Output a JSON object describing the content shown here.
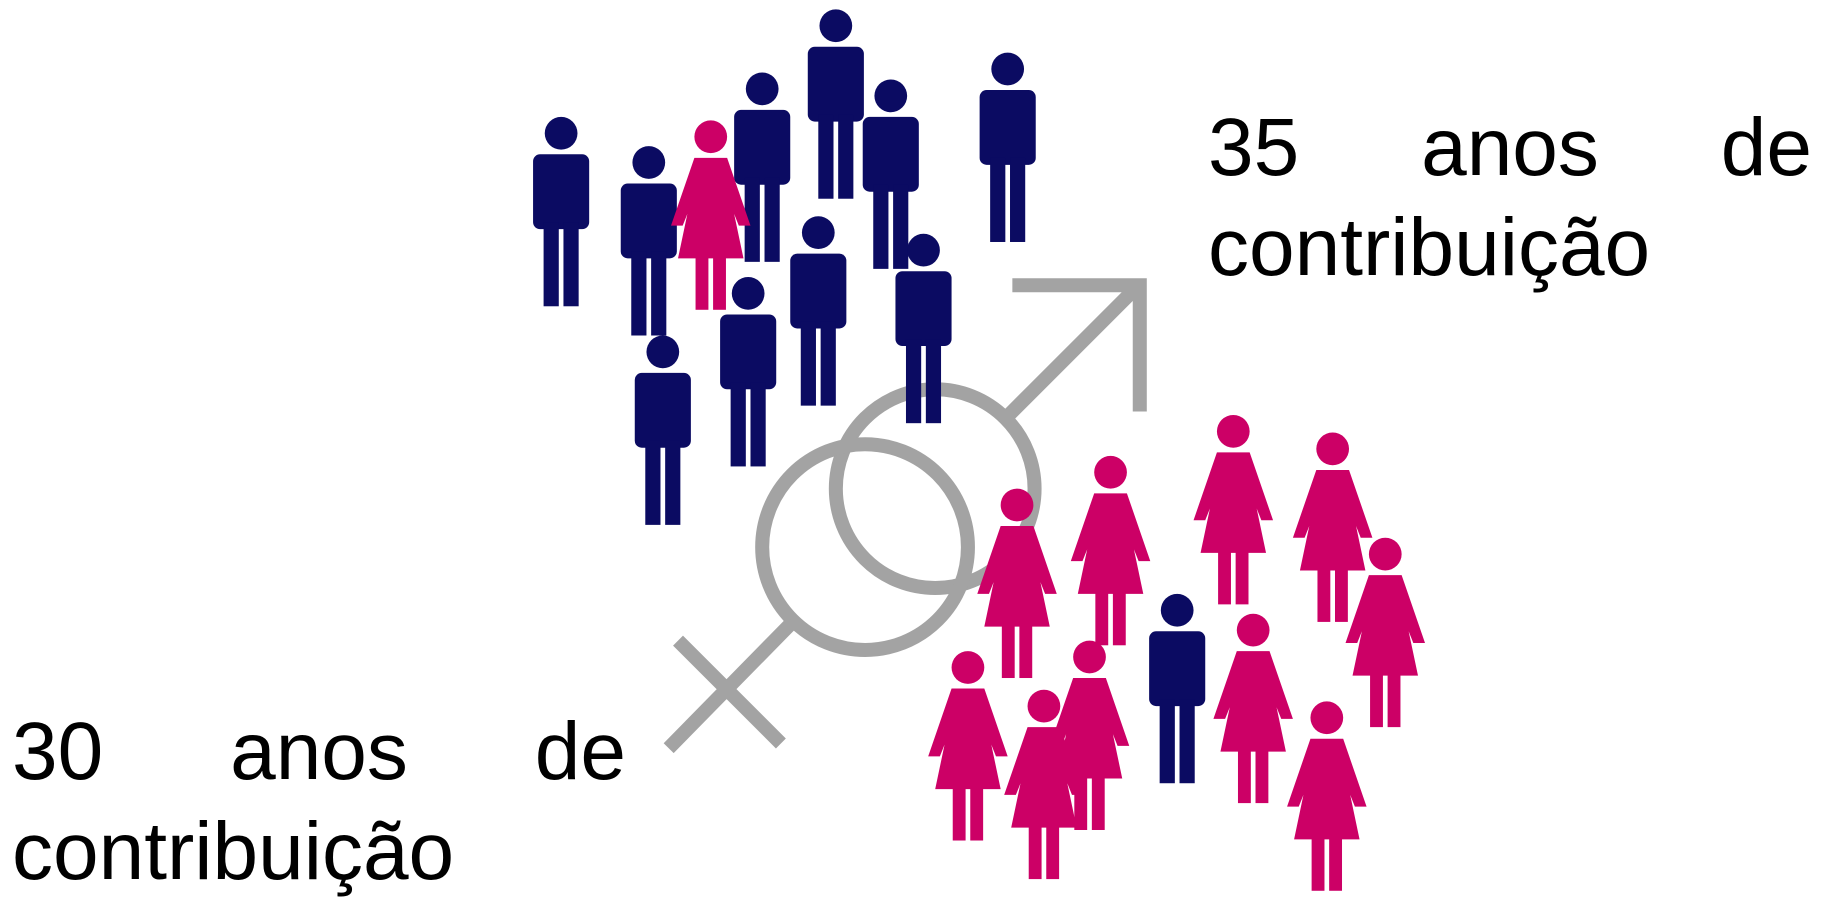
{
  "labels": {
    "men": "35 anos de contribuição",
    "women": "30 anos de contribuição"
  }
}
